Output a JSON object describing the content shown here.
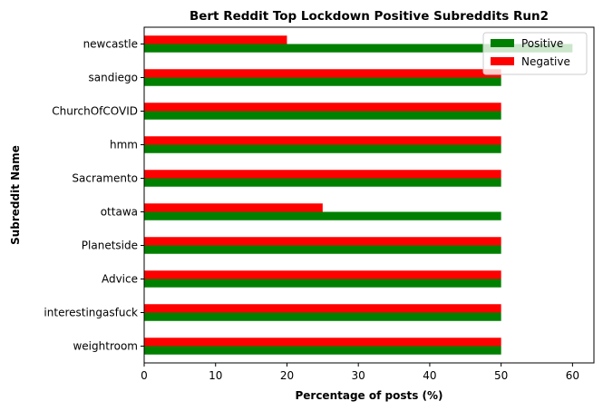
{
  "chart_data": {
    "type": "bar",
    "orientation": "horizontal",
    "title": "Bert Reddit Top Lockdown Positive Subreddits Run2",
    "xlabel": "Percentage of posts (%)",
    "ylabel": "Subreddit Name",
    "xlim": [
      0,
      63
    ],
    "xticks": [
      "0",
      "10",
      "20",
      "30",
      "40",
      "50",
      "60"
    ],
    "categories": [
      "newcastle",
      "sandiego",
      "ChurchOfCOVID",
      "hmm",
      "Sacramento",
      "ottawa",
      "Planetside",
      "Advice",
      "interestingasfuck",
      "weightroom"
    ],
    "series": [
      {
        "name": "Positive",
        "color": "#008000",
        "values": [
          60,
          50,
          50,
          50,
          50,
          50,
          50,
          50,
          50,
          50
        ]
      },
      {
        "name": "Negative",
        "color": "#ff0000",
        "values": [
          20,
          50,
          50,
          50,
          50,
          25,
          50,
          50,
          50,
          50
        ]
      }
    ],
    "legend_position": "top-right",
    "grid": false
  }
}
